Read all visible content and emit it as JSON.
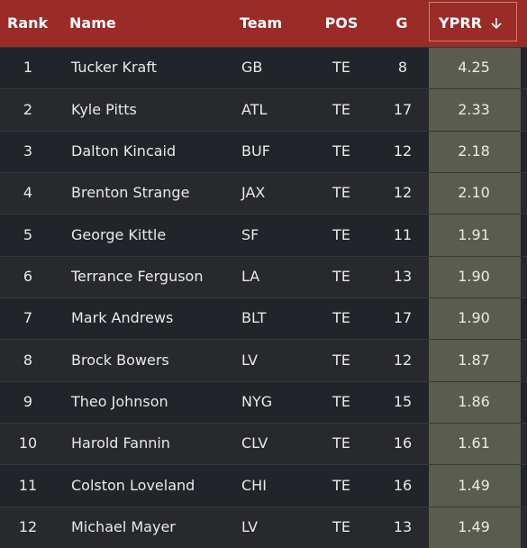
{
  "table": {
    "headers": [
      "Rank",
      "Name",
      "Team",
      "POS",
      "G",
      "YPRR"
    ],
    "rows": [
      [
        "1",
        "Tucker Kraft",
        "GB",
        "TE",
        "8",
        "4.25"
      ],
      [
        "2",
        "Kyle Pitts",
        "ATL",
        "TE",
        "17",
        "2.33"
      ],
      [
        "3",
        "Dalton Kincaid",
        "BUF",
        "TE",
        "12",
        "2.18"
      ],
      [
        "4",
        "Brenton Strange",
        "JAX",
        "TE",
        "12",
        "2.10"
      ],
      [
        "5",
        "George Kittle",
        "SF",
        "TE",
        "11",
        "1.91"
      ],
      [
        "6",
        "Terrance Ferguson",
        "LA",
        "TE",
        "13",
        "1.90"
      ],
      [
        "7",
        "Mark Andrews",
        "BLT",
        "TE",
        "17",
        "1.90"
      ],
      [
        "8",
        "Brock Bowers",
        "LV",
        "TE",
        "12",
        "1.87"
      ],
      [
        "9",
        "Theo Johnson",
        "NYG",
        "TE",
        "15",
        "1.86"
      ],
      [
        "10",
        "Harold Fannin",
        "CLV",
        "TE",
        "16",
        "1.61"
      ],
      [
        "11",
        "Colston Loveland",
        "CHI",
        "TE",
        "16",
        "1.49"
      ],
      [
        "12",
        "Michael Mayer",
        "LV",
        "TE",
        "13",
        "1.49"
      ]
    ]
  }
}
